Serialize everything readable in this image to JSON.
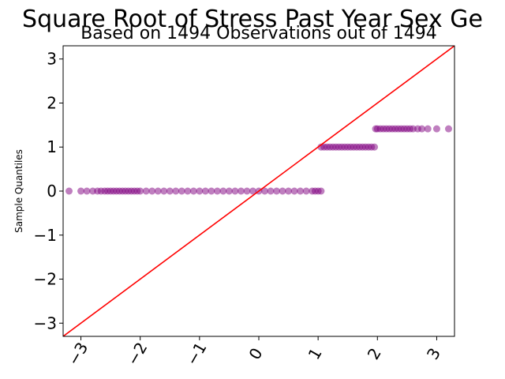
{
  "chart_data": {
    "type": "scatter",
    "title": "Square Root of Stress Past Year Sex Ge",
    "subtitle": "Based on 1494 Observations out of 1494",
    "xlabel": "",
    "ylabel": "Sample Quantiles",
    "xlim": [
      -3.3,
      3.3
    ],
    "ylim": [
      -3.3,
      3.3
    ],
    "xticks": [
      -3,
      -2,
      -1,
      0,
      1,
      2,
      3
    ],
    "xtick_labels": [
      "−3",
      "−2",
      "−1",
      "0",
      "1",
      "2",
      "3"
    ],
    "yticks": [
      -3,
      -2,
      -1,
      0,
      1,
      2,
      3
    ],
    "ytick_labels": [
      "−3",
      "−2",
      "−1",
      "0",
      "1",
      "2",
      "3"
    ],
    "grid": false,
    "point_color": "#800080",
    "line_color": "#ff0000",
    "reference_line": {
      "slope": 1,
      "intercept": 0
    },
    "series": [
      {
        "y": 0,
        "x": [
          -3.2,
          -3.0,
          -2.9,
          -2.8,
          -2.72,
          -2.66,
          -2.6,
          -2.55,
          -2.5,
          -2.45,
          -2.4,
          -2.35,
          -2.3,
          -2.25,
          -2.2,
          -2.15,
          -2.1,
          -2.05,
          -2.0,
          -1.9,
          -1.8,
          -1.7,
          -1.6,
          -1.5,
          -1.4,
          -1.3,
          -1.2,
          -1.1,
          -1.0,
          -0.9,
          -0.8,
          -0.7,
          -0.6,
          -0.5,
          -0.4,
          -0.3,
          -0.2,
          -0.1,
          0.0,
          0.1,
          0.2,
          0.3,
          0.4,
          0.5,
          0.6,
          0.7,
          0.8,
          0.9,
          0.95,
          1.0,
          1.05
        ]
      },
      {
        "y": 1,
        "x": [
          1.05,
          1.1,
          1.15,
          1.2,
          1.25,
          1.3,
          1.35,
          1.4,
          1.45,
          1.5,
          1.55,
          1.6,
          1.65,
          1.7,
          1.75,
          1.8,
          1.85,
          1.9,
          1.95
        ]
      },
      {
        "y": 1.414,
        "x": [
          1.97,
          2.0,
          2.05,
          2.1,
          2.15,
          2.2,
          2.25,
          2.3,
          2.35,
          2.4,
          2.45,
          2.5,
          2.55,
          2.6,
          2.68,
          2.75,
          2.85,
          3.0,
          3.2
        ]
      }
    ]
  }
}
